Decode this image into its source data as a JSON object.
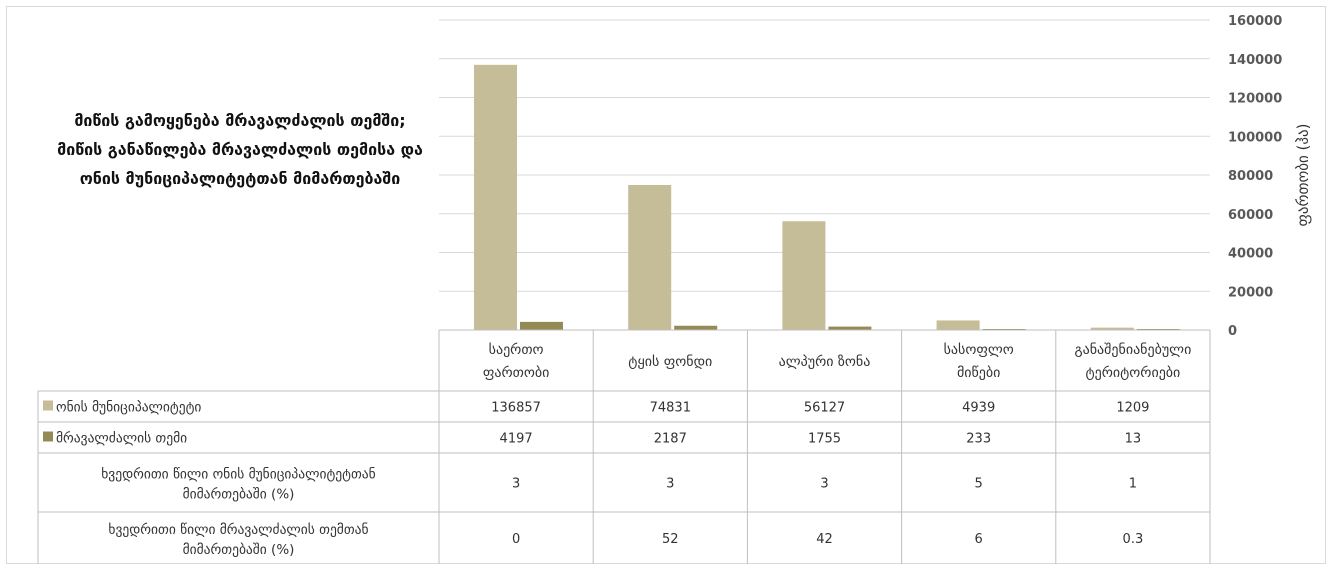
{
  "chart_data": {
    "type": "bar",
    "title": "მიწის გამოყენება მრავალძალის თემში;\nმიწის განაწილება მრავალძალის თემისა და ონის მუნიციპალიტეტთან მიმართებაში",
    "ylabel": "ფართობი (ჰა)",
    "ylim": [
      0,
      160000
    ],
    "yticks": [
      "0",
      "20000",
      "40000",
      "60000",
      "80000",
      "100000",
      "120000",
      "140000",
      "160000"
    ],
    "categories": [
      "საერთო ფართობი",
      "ტყის ფონდი",
      "ალპური ზონა",
      "სასოფლო მიწები",
      "განაშენიანებული ტერიტორიები"
    ],
    "series": [
      {
        "name": "ონის მუნიციპალიტეტი",
        "color": "#c4bd97",
        "values": [
          136857,
          74831,
          56127,
          4939,
          1209
        ]
      },
      {
        "name": "მრავალძალის თემი",
        "color": "#948a54",
        "values": [
          4197,
          2187,
          1755,
          233,
          13
        ]
      }
    ],
    "extra_rows": [
      {
        "name": "ხვედრითი წილი ონის მუნიციპალიტეტთან მიმართებაში (%)",
        "values": [
          "3",
          "3",
          "3",
          "5",
          "1"
        ]
      },
      {
        "name": "ხვედრითი წილი მრავალძალის თემთან მიმართებაში (%)",
        "values": [
          "0",
          "52",
          "42",
          "6",
          "0.3"
        ]
      }
    ],
    "grid": true,
    "legend": "in data table"
  }
}
